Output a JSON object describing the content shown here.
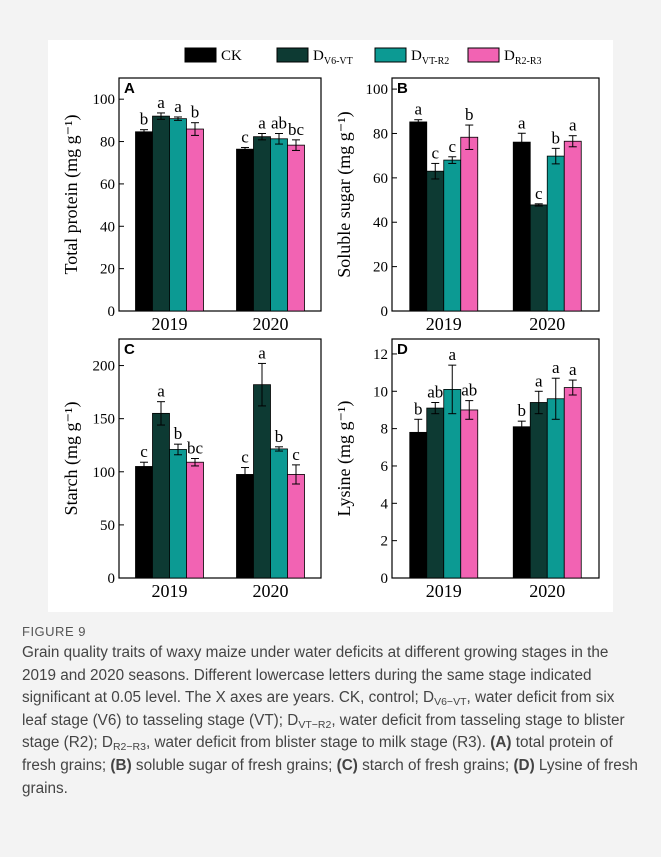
{
  "legend": [
    {
      "key": "ck",
      "main": "CK",
      "sub": "",
      "color": "#000000"
    },
    {
      "key": "v6vt",
      "main": "D",
      "sub": "V6-VT",
      "color": "#0d3a33"
    },
    {
      "key": "vtr2",
      "main": "D",
      "sub": "VT-R2",
      "color": "#0c9a93"
    },
    {
      "key": "r2r3",
      "main": "D",
      "sub": "R2-R3",
      "color": "#f263b3"
    }
  ],
  "chart_data": [
    {
      "panel": "A",
      "type": "bar",
      "ylabel": "Total protein (mg g⁻¹)",
      "categories": [
        "2019",
        "2020"
      ],
      "ylim": [
        0,
        110
      ],
      "yticks": [
        0,
        20,
        40,
        60,
        80,
        100
      ],
      "series": [
        {
          "name": "CK",
          "values": [
            84.6,
            76.4
          ],
          "errors": [
            1.0,
            0.8
          ],
          "letters": [
            "b",
            "c"
          ]
        },
        {
          "name": "DV6-VT",
          "values": [
            92.0,
            82.3
          ],
          "errors": [
            1.5,
            1.5
          ],
          "letters": [
            "a",
            "a"
          ]
        },
        {
          "name": "DVT-R2",
          "values": [
            90.8,
            81.3
          ],
          "errors": [
            0.8,
            2.5
          ],
          "letters": [
            "a",
            "ab"
          ]
        },
        {
          "name": "DR2-R3",
          "values": [
            85.9,
            78.3
          ],
          "errors": [
            3.0,
            2.5
          ],
          "letters": [
            "b",
            "bc"
          ]
        }
      ]
    },
    {
      "panel": "B",
      "type": "bar",
      "ylabel": "Soluble sugar (mg g⁻¹)",
      "categories": [
        "2019",
        "2020"
      ],
      "ylim": [
        0,
        105
      ],
      "yticks": [
        0,
        20,
        40,
        60,
        80,
        100
      ],
      "series": [
        {
          "name": "CK",
          "values": [
            85.2,
            76.1
          ],
          "errors": [
            1.0,
            4.0
          ],
          "letters": [
            "a",
            "a"
          ]
        },
        {
          "name": "DV6-VT",
          "values": [
            63.0,
            47.8
          ],
          "errors": [
            3.5,
            0.5
          ],
          "letters": [
            "c",
            "c"
          ]
        },
        {
          "name": "DVT-R2",
          "values": [
            68.0,
            69.8
          ],
          "errors": [
            1.5,
            3.5
          ],
          "letters": [
            "c",
            "b"
          ]
        },
        {
          "name": "DR2-R3",
          "values": [
            78.3,
            76.5
          ],
          "errors": [
            5.5,
            2.5
          ],
          "letters": [
            "b",
            "a"
          ]
        }
      ]
    },
    {
      "panel": "C",
      "type": "bar",
      "ylabel": "Starch (mg g⁻¹)",
      "categories": [
        "2019",
        "2020"
      ],
      "ylim": [
        0,
        225
      ],
      "yticks": [
        0,
        50,
        100,
        150,
        200
      ],
      "series": [
        {
          "name": "CK",
          "values": [
            105.0,
            97.5
          ],
          "errors": [
            4.0,
            6.5
          ],
          "letters": [
            "c",
            "c"
          ]
        },
        {
          "name": "DV6-VT",
          "values": [
            155.0,
            182.0
          ],
          "errors": [
            11.0,
            20.0
          ],
          "letters": [
            "a",
            "a"
          ]
        },
        {
          "name": "DVT-R2",
          "values": [
            121.0,
            121.5
          ],
          "errors": [
            5.0,
            2.0
          ],
          "letters": [
            "b",
            "b"
          ]
        },
        {
          "name": "DR2-R3",
          "values": [
            109.0,
            97.5
          ],
          "errors": [
            3.5,
            9.0
          ],
          "letters": [
            "bc",
            "c"
          ]
        }
      ]
    },
    {
      "panel": "D",
      "type": "bar",
      "ylabel": "Lysine (mg g⁻¹)",
      "categories": [
        "2019",
        "2020"
      ],
      "ylim": [
        0,
        12.8
      ],
      "yticks": [
        0,
        2,
        4,
        6,
        8,
        10,
        12
      ],
      "series": [
        {
          "name": "CK",
          "values": [
            7.8,
            8.1
          ],
          "errors": [
            0.7,
            0.3
          ],
          "letters": [
            "b",
            "b"
          ]
        },
        {
          "name": "DV6-VT",
          "values": [
            9.1,
            9.4
          ],
          "errors": [
            0.3,
            0.6
          ],
          "letters": [
            "ab",
            "a"
          ]
        },
        {
          "name": "DVT-R2",
          "values": [
            10.1,
            9.6
          ],
          "errors": [
            1.3,
            1.1
          ],
          "letters": [
            "a",
            "a"
          ]
        },
        {
          "name": "DR2-R3",
          "values": [
            9.0,
            10.2
          ],
          "errors": [
            0.5,
            0.4
          ],
          "letters": [
            "ab",
            "a"
          ]
        }
      ]
    }
  ],
  "caption": {
    "label": "FIGURE 9",
    "segments": [
      {
        "t": "Grain quality traits of waxy maize under water deficits at different growing stages in the 2019 and 2020 seasons. Different lowercase letters during the same stage indicated significant at 0.05 level. The X axes are years. CK, control; D"
      },
      {
        "t": "V6−VT",
        "sub": true
      },
      {
        "t": ", water deficit from six leaf stage (V6) to tasseling stage (VT); D"
      },
      {
        "t": "VT−R2",
        "sub": true
      },
      {
        "t": ", water deficit from tasseling stage to blister stage (R2); D"
      },
      {
        "t": "R2−R3",
        "sub": true
      },
      {
        "t": ", water deficit from blister stage to milk stage (R3). "
      },
      {
        "t": "(A)",
        "bold": true
      },
      {
        "t": " total protein of fresh grains; "
      },
      {
        "t": "(B)",
        "bold": true
      },
      {
        "t": " soluble sugar of fresh grains; "
      },
      {
        "t": "(C)",
        "bold": true
      },
      {
        "t": " starch of fresh grains; "
      },
      {
        "t": "(D)",
        "bold": true
      },
      {
        "t": " Lysine of fresh grains."
      }
    ]
  }
}
